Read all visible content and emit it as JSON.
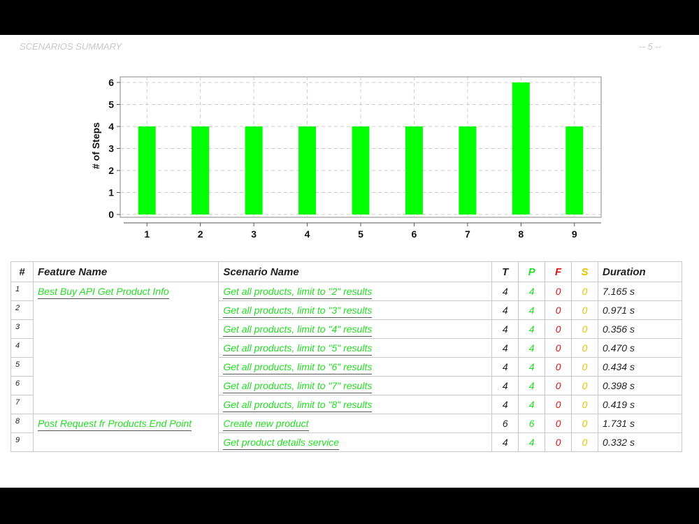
{
  "header": {
    "title": "SCENARIOS SUMMARY",
    "page_number": "-- 5 --"
  },
  "colors": {
    "bar": "#00ff00",
    "passed": "#22dd22",
    "failed": "#dd1111",
    "skipped": "#e8c200"
  },
  "chart_data": {
    "type": "bar",
    "categories": [
      "1",
      "2",
      "3",
      "4",
      "5",
      "6",
      "7",
      "8",
      "9"
    ],
    "values": [
      4,
      4,
      4,
      4,
      4,
      4,
      4,
      6,
      4
    ],
    "title": "",
    "xlabel": "",
    "ylabel": "# of Steps",
    "ylim": [
      0,
      6
    ],
    "yticks": [
      "0",
      "1",
      "2",
      "3",
      "4",
      "5",
      "6"
    ],
    "grid": true,
    "legend": "none"
  },
  "table": {
    "headers": {
      "index": "#",
      "feature": "Feature Name",
      "scenario": "Scenario Name",
      "total": "T",
      "passed": "P",
      "failed": "F",
      "skipped": "S",
      "duration": "Duration"
    },
    "rows": [
      {
        "index": "1",
        "feature": "Best Buy API Get Product Info",
        "scenario": "Get all products, limit to \"2\" results",
        "total": "4",
        "passed": "4",
        "failed": "0",
        "skipped": "0",
        "duration": "7.165 s"
      },
      {
        "index": "2",
        "feature": "",
        "scenario": "Get all products, limit to \"3\" results",
        "total": "4",
        "passed": "4",
        "failed": "0",
        "skipped": "0",
        "duration": "0.971 s"
      },
      {
        "index": "3",
        "feature": "",
        "scenario": "Get all products, limit to \"4\" results",
        "total": "4",
        "passed": "4",
        "failed": "0",
        "skipped": "0",
        "duration": "0.356 s"
      },
      {
        "index": "4",
        "feature": "",
        "scenario": "Get all products, limit to \"5\" results",
        "total": "4",
        "passed": "4",
        "failed": "0",
        "skipped": "0",
        "duration": "0.470 s"
      },
      {
        "index": "5",
        "feature": "",
        "scenario": "Get all products, limit to \"6\" results",
        "total": "4",
        "passed": "4",
        "failed": "0",
        "skipped": "0",
        "duration": "0.434 s"
      },
      {
        "index": "6",
        "feature": "",
        "scenario": "Get all products, limit to \"7\" results",
        "total": "4",
        "passed": "4",
        "failed": "0",
        "skipped": "0",
        "duration": "0.398 s"
      },
      {
        "index": "7",
        "feature": "",
        "scenario": "Get all products, limit to \"8\" results",
        "total": "4",
        "passed": "4",
        "failed": "0",
        "skipped": "0",
        "duration": "0.419 s"
      },
      {
        "index": "8",
        "feature": "Post Request fr Products End Point",
        "scenario": "Create new product",
        "total": "6",
        "passed": "6",
        "failed": "0",
        "skipped": "0",
        "duration": "1.731 s"
      },
      {
        "index": "9",
        "feature": "",
        "scenario": "Get product details service",
        "total": "4",
        "passed": "4",
        "failed": "0",
        "skipped": "0",
        "duration": "0.332 s"
      }
    ]
  }
}
